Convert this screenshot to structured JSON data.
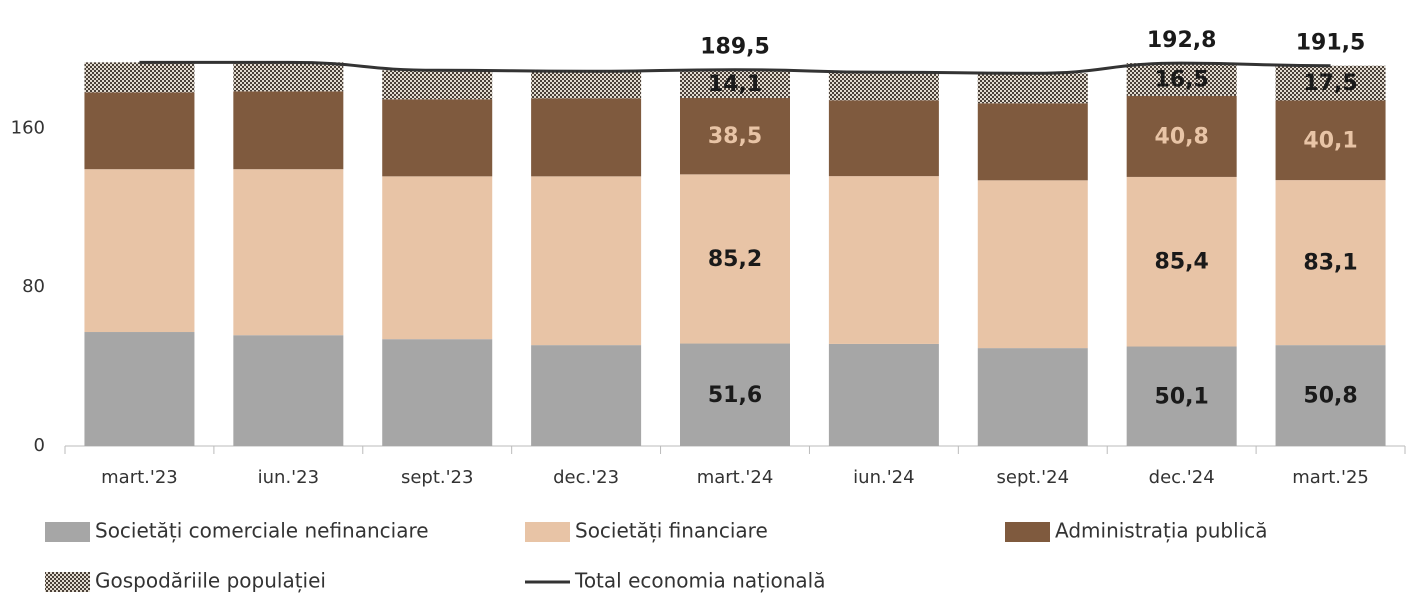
{
  "chart_data": {
    "type": "bar",
    "stacked": true,
    "categories": [
      "mart.'23",
      "iun.'23",
      "sept.'23",
      "dec.'23",
      "mart.'24",
      "iun.'24",
      "sept.'24",
      "dec.'24",
      "mart.'25"
    ],
    "ylim": [
      0,
      210
    ],
    "yticks": [
      0,
      80,
      160
    ],
    "series": [
      {
        "name": "Societăți comerciale nefinanciare",
        "color": "#a6a6a6",
        "label_color": "#1a1a1a",
        "values": [
          57.4,
          55.8,
          53.8,
          50.8,
          51.6,
          51.4,
          49.3,
          50.1,
          50.8
        ],
        "value_labels": [
          null,
          null,
          null,
          null,
          "51,6",
          null,
          null,
          "50,1",
          "50,8"
        ]
      },
      {
        "name": "Societăți financiare",
        "color": "#e8c4a6",
        "label_color": "#1a1a1a",
        "values": [
          82.0,
          83.6,
          82.0,
          85.0,
          85.2,
          84.5,
          84.5,
          85.4,
          83.1
        ],
        "value_labels": [
          null,
          null,
          null,
          null,
          "85,2",
          null,
          null,
          "85,4",
          "83,1"
        ]
      },
      {
        "name": "Administrația publică",
        "color": "#7f5a3e",
        "label_color": "#e8c4a6",
        "values": [
          38.7,
          39.2,
          38.8,
          39.3,
          38.5,
          38.2,
          38.8,
          40.8,
          40.1
        ],
        "value_labels": [
          null,
          null,
          null,
          null,
          "38,5",
          null,
          null,
          "40,8",
          "40,1"
        ]
      },
      {
        "name": "Gospodăriile populației",
        "color": "#e2dbd0",
        "pattern_color": "#4a4038",
        "label_color": "#1a1a1a",
        "values": [
          15.1,
          14.6,
          14.6,
          13.6,
          14.1,
          14.1,
          15.1,
          16.5,
          17.5
        ],
        "value_labels": [
          null,
          null,
          null,
          null,
          "14,1",
          null,
          null,
          "16,5",
          "17,5"
        ]
      },
      {
        "name": "Total economia națională",
        "type": "line",
        "color": "#333333",
        "label_color": "#1a1a1a",
        "values": [
          193.2,
          193.2,
          189.2,
          188.7,
          189.5,
          188.2,
          187.7,
          192.8,
          191.5
        ],
        "value_labels": [
          null,
          null,
          null,
          null,
          "189,5",
          null,
          null,
          "192,8",
          "191,5"
        ]
      }
    ]
  }
}
